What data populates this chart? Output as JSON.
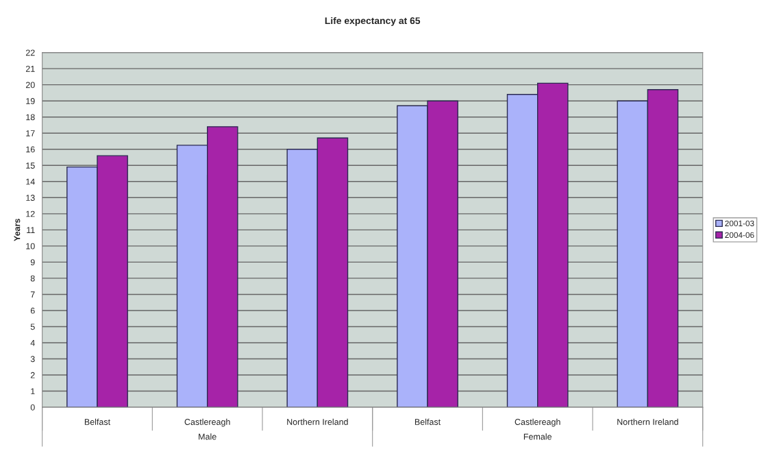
{
  "chart_data": {
    "type": "bar",
    "title": "Life expectancy at 65",
    "ylabel": "Years",
    "categories": [
      "Belfast",
      "Castlereagh",
      "Northern Ireland",
      "Belfast",
      "Castlereagh",
      "Northern Ireland"
    ],
    "series": [
      {
        "name": "2001-03",
        "color": "#aab2fa",
        "values": [
          14.9,
          16.25,
          16.0,
          18.7,
          19.4,
          19.0
        ]
      },
      {
        "name": "2004-06",
        "color": "#a623a8",
        "values": [
          15.6,
          17.4,
          16.7,
          19.0,
          20.1,
          19.7
        ]
      }
    ],
    "annotations": [
      "Male",
      "Female"
    ],
    "ylim": [
      0,
      22
    ],
    "yticks": [
      0,
      1,
      2,
      3,
      4,
      5,
      6,
      7,
      8,
      9,
      10,
      11,
      12,
      13,
      14,
      15,
      16,
      17,
      18,
      19,
      20,
      21,
      22
    ],
    "grid": "y",
    "legend": "right"
  }
}
